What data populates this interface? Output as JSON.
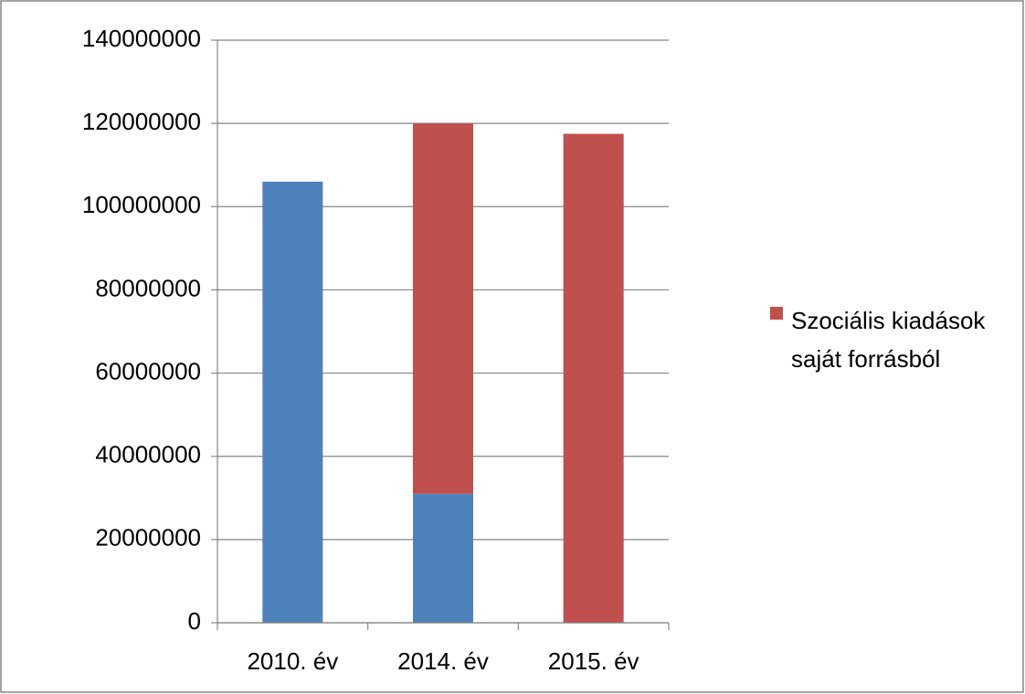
{
  "chart_data": {
    "type": "stacked_bar",
    "categories": [
      "2010. év",
      "2014. év",
      "2015. év"
    ],
    "series": [
      {
        "color": "#4f81bd",
        "values": [
          106000000,
          31000000,
          null
        ]
      },
      {
        "name": "Szociális kiadások saját forrásból",
        "color": "#c0504d",
        "values": [
          null,
          89000000,
          117500000
        ]
      }
    ],
    "ylim": [
      0,
      140000000
    ],
    "yticks": [
      0,
      20000000,
      40000000,
      60000000,
      80000000,
      100000000,
      120000000,
      140000000
    ],
    "grid": true,
    "legend": "right"
  }
}
